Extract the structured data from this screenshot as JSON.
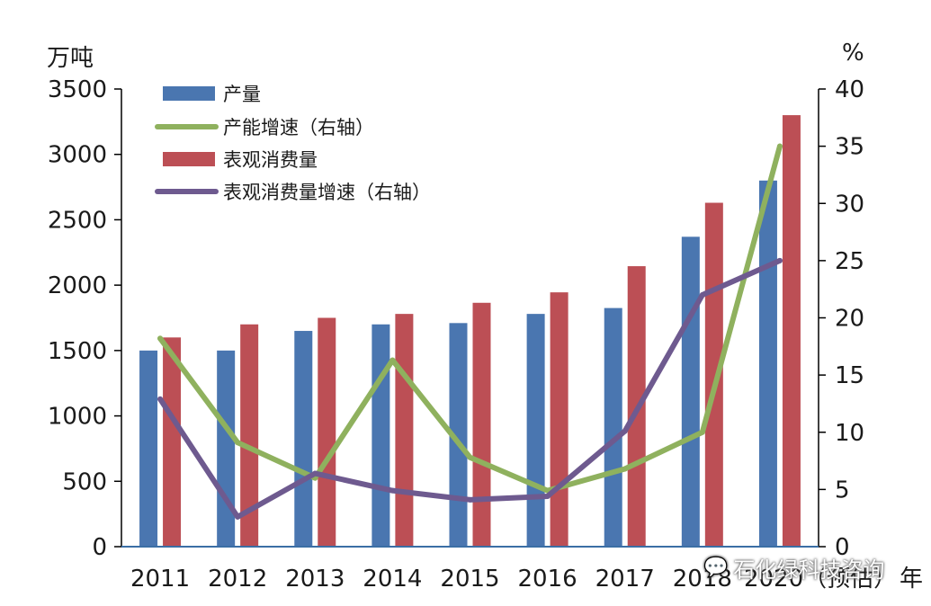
{
  "units": {
    "left": "万吨",
    "right": "%"
  },
  "axis_suffix": "年",
  "watermark": {
    "text": "石化绿科技咨询",
    "icon": "wechat-icon"
  },
  "chart_data": {
    "type": "bar",
    "categories": [
      "2011",
      "2012",
      "2013",
      "2014",
      "2015",
      "2016",
      "2017",
      "2018",
      "2020（预估）"
    ],
    "ylim_left": [
      0,
      3500
    ],
    "yticks_left": [
      0,
      500,
      1000,
      1500,
      2000,
      2500,
      3000,
      3500
    ],
    "ylim_right": [
      0,
      40
    ],
    "yticks_right": [
      0,
      5,
      10,
      15,
      20,
      25,
      30,
      35,
      40
    ],
    "grid": false,
    "legend_position": "top-left",
    "series": [
      {
        "name": "产量",
        "kind": "bar",
        "axis": "left",
        "color": "#4a76b0",
        "values": [
          1500,
          1500,
          1650,
          1700,
          1710,
          1780,
          1825,
          2370,
          2800
        ]
      },
      {
        "name": "产能增速（右轴）",
        "kind": "line",
        "axis": "right",
        "color": "#8fb15e",
        "values": [
          18.2,
          9.1,
          6.0,
          16.3,
          7.8,
          4.9,
          6.8,
          10.0,
          35.0
        ]
      },
      {
        "name": "表观消费量",
        "kind": "bar",
        "axis": "left",
        "color": "#bc4f55",
        "values": [
          1600,
          1700,
          1750,
          1780,
          1865,
          1945,
          2145,
          2630,
          3300
        ]
      },
      {
        "name": "表观消费量增速（右轴）",
        "kind": "line",
        "axis": "right",
        "color": "#6e5a8f",
        "values": [
          12.9,
          2.6,
          6.4,
          4.9,
          4.1,
          4.4,
          10.1,
          22.0,
          25.0
        ]
      }
    ]
  }
}
